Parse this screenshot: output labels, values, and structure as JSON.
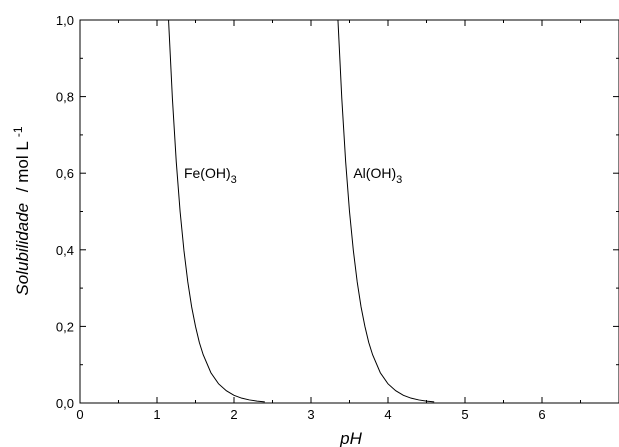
{
  "chart_data": {
    "type": "line",
    "xlabel": "pH",
    "ylabel_main": "Solubilidade",
    "ylabel_unit": "/ mol L",
    "ylabel_sup": "-1",
    "xlim": [
      0,
      7
    ],
    "ylim": [
      0,
      1.0
    ],
    "xticks": [
      0,
      1,
      2,
      3,
      4,
      5,
      6
    ],
    "xtick_labels": [
      "0",
      "1",
      "2",
      "3",
      "4",
      "5",
      "6"
    ],
    "yticks": [
      0,
      0.2,
      0.4,
      0.6,
      0.8,
      1.0
    ],
    "ytick_labels": [
      "0,0",
      "0,2",
      "0,4",
      "0,6",
      "0,8",
      "1,0"
    ],
    "grid": false,
    "series": [
      {
        "label_base": "Fe(OH)",
        "label_sub": "3",
        "color": "#000000",
        "x": [
          1.15,
          1.2,
          1.25,
          1.3,
          1.35,
          1.4,
          1.45,
          1.5,
          1.55,
          1.6,
          1.7,
          1.8,
          1.9,
          2.0,
          2.1,
          2.2,
          2.3,
          2.4
        ],
        "y": [
          1.0,
          0.795,
          0.63,
          0.5,
          0.398,
          0.316,
          0.251,
          0.2,
          0.158,
          0.126,
          0.079,
          0.05,
          0.032,
          0.02,
          0.0126,
          0.008,
          0.005,
          0.003
        ]
      },
      {
        "label_base": "Al(OH)",
        "label_sub": "3",
        "color": "#000000",
        "x": [
          3.35,
          3.4,
          3.45,
          3.5,
          3.55,
          3.6,
          3.65,
          3.7,
          3.75,
          3.8,
          3.9,
          4.0,
          4.1,
          4.2,
          4.3,
          4.4,
          4.5,
          4.6
        ],
        "y": [
          1.0,
          0.795,
          0.63,
          0.5,
          0.398,
          0.316,
          0.251,
          0.2,
          0.158,
          0.126,
          0.079,
          0.05,
          0.032,
          0.02,
          0.0126,
          0.008,
          0.005,
          0.003
        ]
      }
    ]
  }
}
